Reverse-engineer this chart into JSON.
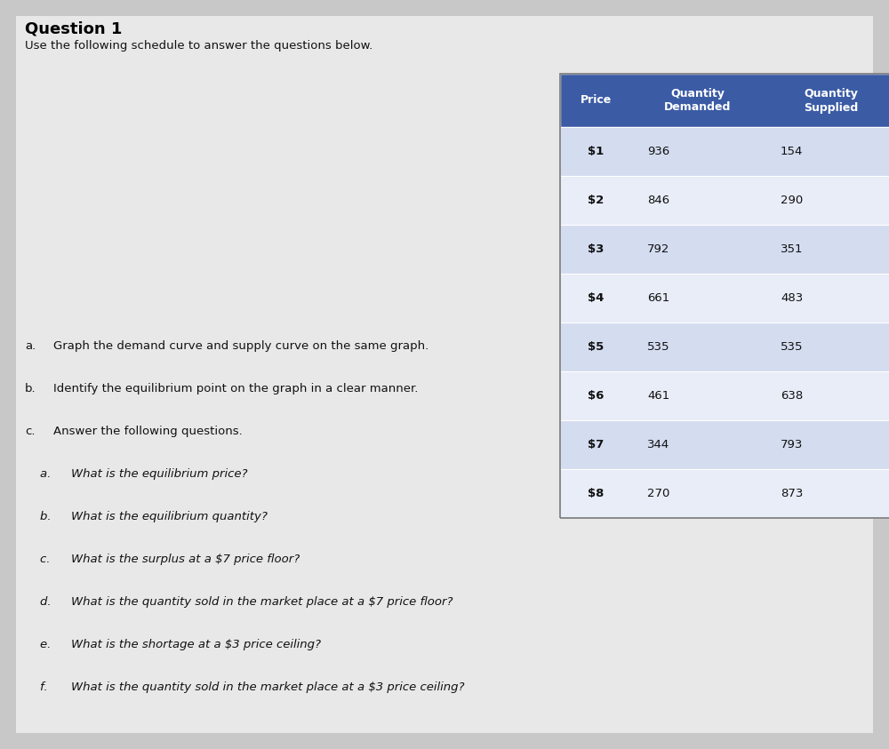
{
  "title": "Question 1",
  "intro_text": "Use the following schedule to answer the questions below.",
  "table_header": [
    "Price",
    "Quantity\nDemanded",
    "Quantity\nSupplied"
  ],
  "table_data": [
    [
      "$1",
      "936",
      "154"
    ],
    [
      "$2",
      "846",
      "290"
    ],
    [
      "$3",
      "792",
      "351"
    ],
    [
      "$4",
      "661",
      "483"
    ],
    [
      "$5",
      "535",
      "535"
    ],
    [
      "$6",
      "461",
      "638"
    ],
    [
      "$7",
      "344",
      "793"
    ],
    [
      "$8",
      "270",
      "873"
    ]
  ],
  "header_bg": "#3B5BA5",
  "header_text_color": "#FFFFFF",
  "row_bg_odd": "#D4DCF0",
  "row_bg_even": "#E8EDF8",
  "table_text_color": "#111111",
  "instructions": [
    [
      "a.",
      "Graph the demand curve and supply curve on the same graph."
    ],
    [
      "b.",
      "Identify the equilibrium point on the graph in a clear manner."
    ],
    [
      "c.",
      "Answer the following questions."
    ],
    [
      "    a.",
      "What is the equilibrium price?"
    ],
    [
      "    b.",
      "What is the equilibrium quantity?"
    ],
    [
      "    c.",
      "What is the surplus at a $7 price floor?"
    ],
    [
      "    d.",
      "What is the quantity sold in the market place at a $7 price floor?"
    ],
    [
      "    e.",
      "What is the shortage at a $3 price ceiling?"
    ],
    [
      "    f.",
      "What is the quantity sold in the market place at a $3 price ceiling?"
    ]
  ],
  "page_bg": "#C8C8C8",
  "content_bg": "#E8E8E8"
}
